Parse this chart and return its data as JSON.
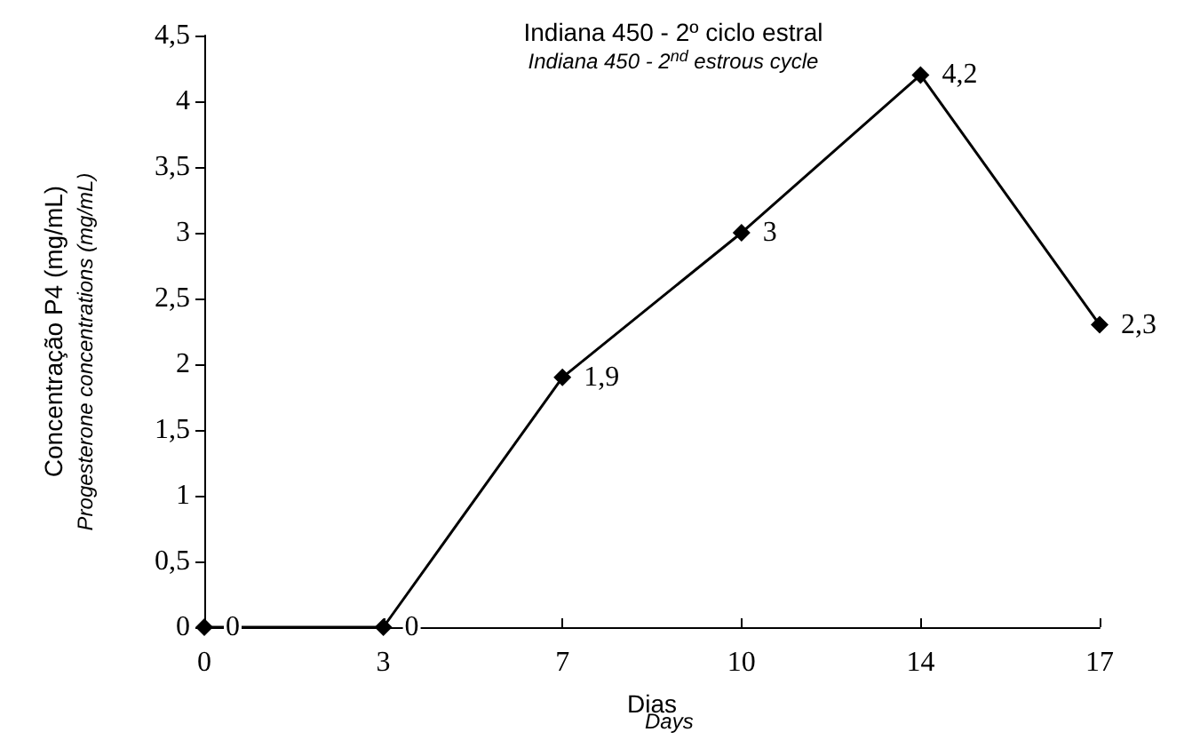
{
  "chart_data": {
    "type": "line",
    "title": "Indiana 450 - 2º ciclo estral",
    "subtitle": "Indiana 450 - 2$^{nd}$ estrous cycle",
    "xlabel": "Dias",
    "ylabel": "Concentração P4 (mg/mL)",
    "annotations": [
      "Days",
      "Progesterone concentrations (mg/mL)"
    ],
    "categories": [
      "0",
      "3",
      "7",
      "10",
      "14",
      "17"
    ],
    "series": [
      {
        "color": "#000000",
        "values": [
          0,
          0,
          1.9,
          3,
          4.2,
          2.3
        ],
        "value_labels": [
          "0",
          "0",
          "1,9",
          "3",
          "4,2",
          "2,3"
        ]
      }
    ],
    "ylim": [
      0,
      4.5
    ],
    "yticks": [
      0,
      {
        "value": 0.5,
        "label": "0,5"
      },
      1,
      {
        "value": 1.5,
        "label": "1,5"
      },
      2,
      {
        "value": 2.5,
        "label": "2,5"
      },
      3,
      {
        "value": 3.5,
        "label": "3,5"
      },
      4,
      {
        "value": 4.5,
        "label": "4,5"
      }
    ],
    "grid": false,
    "marker": "diamond",
    "line_style": "solid"
  }
}
